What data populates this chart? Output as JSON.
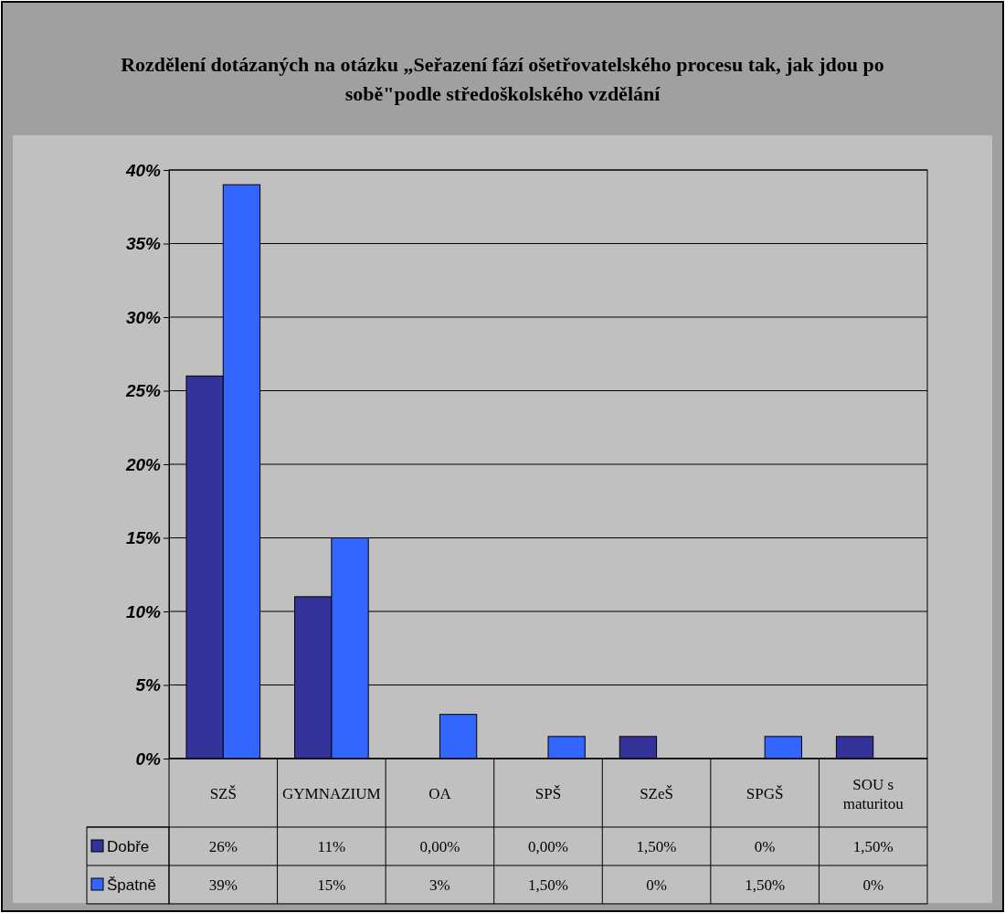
{
  "chart_data": {
    "type": "bar",
    "title": "Rozdělení dotázaných na otázku „Seřazení fází ošetřovatelského procesu tak, jak jdou po sobě\"podle středoškolského vzdělání",
    "categories": [
      "SZŠ",
      "GYMNAZIUM",
      "OA",
      "SPŠ",
      "SZeŠ",
      "SPGŠ",
      "SOU s maturitou"
    ],
    "series": [
      {
        "name": "Dobře",
        "color": "#333399",
        "values": [
          26,
          11,
          0,
          0,
          1.5,
          0,
          1.5
        ],
        "value_labels": [
          "26%",
          "11%",
          "0,00%",
          "0,00%",
          "1,50%",
          "0%",
          "1,50%"
        ]
      },
      {
        "name": "Špatně",
        "color": "#3366ff",
        "values": [
          39,
          15,
          3,
          1.5,
          0,
          1.5,
          0
        ],
        "value_labels": [
          "39%",
          "15%",
          "3%",
          "1,50%",
          "0%",
          "1,50%",
          "0%"
        ]
      }
    ],
    "ylim": [
      0,
      40
    ],
    "yticks": [
      {
        "value": 0,
        "label": "0%"
      },
      {
        "value": 5,
        "label": "5%"
      },
      {
        "value": 10,
        "label": "10%"
      },
      {
        "value": 15,
        "label": "15%"
      },
      {
        "value": 20,
        "label": "20%"
      },
      {
        "value": 25,
        "label": "25%"
      },
      {
        "value": 30,
        "label": "30%"
      },
      {
        "value": 35,
        "label": "35%"
      },
      {
        "value": 40,
        "label": "40%"
      }
    ],
    "grid": "y",
    "legend": "bottom"
  }
}
